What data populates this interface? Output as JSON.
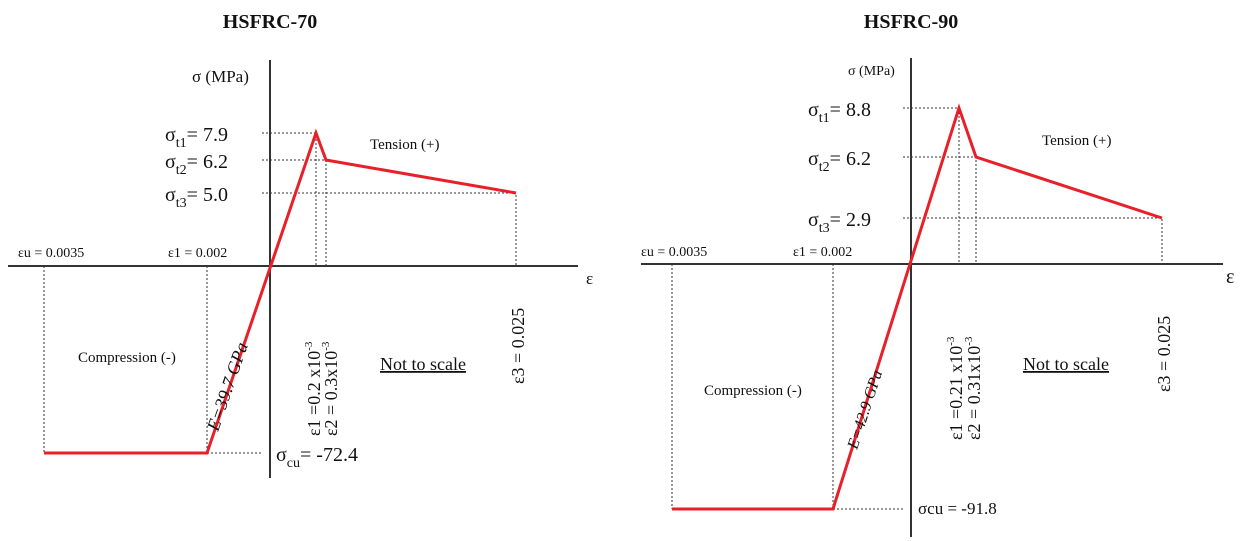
{
  "left": {
    "title": "HSFRC-70",
    "y_axis_label": "σ (MPa)",
    "x_axis_label": "ε",
    "st1": "σ",
    "st1_sub": "t1",
    "st1_val": "= 7.9",
    "st2": "σ",
    "st2_sub": "t2",
    "st2_val": "= 6.2",
    "st3": "σ",
    "st3_sub": "t3",
    "st3_val": "= 5.0",
    "eu_label": "εu = 0.0035",
    "e1c_label": "ε1 = 0.002",
    "modulus": "E=39.7 GPa",
    "e1t_label": "ε1 =0.2 x10",
    "e2t_label": "ε2 = 0.3x10",
    "exp": "-3",
    "e3_label": "ε3 = 0.025",
    "tension": "Tension (+)",
    "compression": "Compression (-)",
    "scale_note": "Not to scale",
    "scu": "σ",
    "scu_sub": "cu",
    "scu_val": "= -72.4"
  },
  "right": {
    "title": "HSFRC-90",
    "y_axis_label": "σ (MPa)",
    "x_axis_label": "ε",
    "st1": "σ",
    "st1_sub": "t1",
    "st1_val": "= 8.8",
    "st2": "σ",
    "st2_sub": "t2",
    "st2_val": "= 6.2",
    "st3": "σ",
    "st3_sub": "t3",
    "st3_val": "= 2.9",
    "eu_label": "εu = 0.0035",
    "e1c_label": "ε1 = 0.002",
    "modulus": "E=42.9 GPa",
    "e1t_label": "ε1 =0.21 x10",
    "e2t_label": "ε2 = 0.31x10",
    "exp": "-3",
    "e3_label": "ε3 = 0.025",
    "tension": "Tension (+)",
    "compression": "Compression (-)",
    "scale_note": "Not to scale",
    "scu_val": "σcu = -91.8"
  },
  "colors": {
    "curve": "#e8202a",
    "axis": "#333333"
  }
}
